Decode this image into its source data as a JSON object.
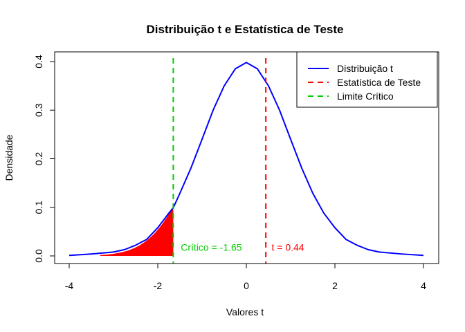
{
  "chart_data": {
    "type": "line",
    "title": "Distribuição t e Estatística de Teste",
    "xlabel": "Valores t",
    "ylabel": "Densidade",
    "xlim": [
      -4,
      4
    ],
    "ylim": [
      0,
      0.4
    ],
    "x_ticks": [
      -4,
      -2,
      0,
      2,
      4
    ],
    "y_ticks": [
      0.0,
      0.1,
      0.2,
      0.3,
      0.4
    ],
    "x_tick_labels": [
      "-4",
      "-2",
      "0",
      "2",
      "4"
    ],
    "y_tick_labels": [
      "0.0",
      "0.1",
      "0.2",
      "0.3",
      "0.4"
    ],
    "grid": false,
    "legend_position": "top-right",
    "series": [
      {
        "name": "Distribuição t",
        "color": "#0000ff",
        "style": "solid",
        "x": [
          -4.0,
          -3.5,
          -3.0,
          -2.75,
          -2.5,
          -2.25,
          -2.0,
          -1.75,
          -1.65,
          -1.5,
          -1.25,
          -1.0,
          -0.75,
          -0.5,
          -0.25,
          0.0,
          0.25,
          0.5,
          0.75,
          1.0,
          1.25,
          1.5,
          1.75,
          2.0,
          2.25,
          2.5,
          2.75,
          3.0,
          3.5,
          4.0
        ],
        "y": [
          0.001,
          0.004,
          0.008,
          0.013,
          0.022,
          0.034,
          0.058,
          0.088,
          0.099,
          0.129,
          0.181,
          0.24,
          0.3,
          0.35,
          0.385,
          0.398,
          0.385,
          0.35,
          0.3,
          0.24,
          0.181,
          0.129,
          0.088,
          0.058,
          0.034,
          0.022,
          0.013,
          0.008,
          0.004,
          0.001
        ]
      }
    ],
    "vlines": [
      {
        "name": "Estatística de Teste",
        "x": 0.44,
        "color": "#ff0000",
        "style": "dashed"
      },
      {
        "name": "Limite Crítico",
        "x": -1.65,
        "color": "#00cc00",
        "style": "dashed"
      }
    ],
    "shaded_region": {
      "from_x": -3.3,
      "to_x": -1.65,
      "color": "#ff0000"
    },
    "annotations": [
      {
        "text": "Crítico = -1.65",
        "x": -1.48,
        "y": 0.018,
        "color": "#00cc00"
      },
      {
        "text": "t = 0.44",
        "x": 0.57,
        "y": 0.018,
        "color": "#ff0000"
      }
    ],
    "legend": [
      {
        "label": "Distribuição t",
        "color": "#0000ff",
        "style": "solid"
      },
      {
        "label": "Estatística de Teste",
        "color": "#ff0000",
        "style": "dashed"
      },
      {
        "label": "Limite Crítico",
        "color": "#00cc00",
        "style": "dashed"
      }
    ]
  }
}
